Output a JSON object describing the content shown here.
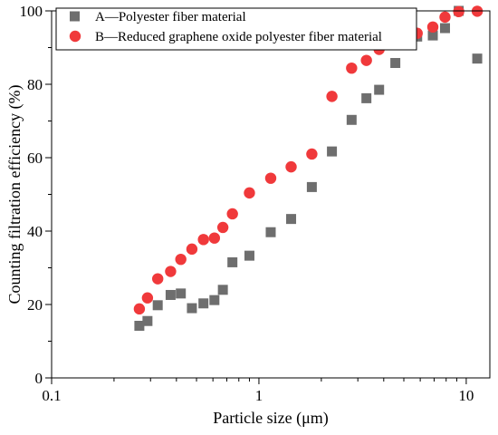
{
  "chart_data": {
    "type": "scatter",
    "title": "",
    "xlabel": "Particle size (μm)",
    "ylabel": "Counting filtration efficiency (%)",
    "xscale": "log",
    "xlim": [
      0.1,
      13
    ],
    "ylim": [
      0,
      100
    ],
    "xticks": [
      {
        "value": 0.1,
        "label": "0.1"
      },
      {
        "value": 1,
        "label": "1"
      },
      {
        "value": 10,
        "label": "10"
      }
    ],
    "yticks": [
      {
        "value": 0,
        "label": "0"
      },
      {
        "value": 20,
        "label": "20"
      },
      {
        "value": 40,
        "label": "40"
      },
      {
        "value": 60,
        "label": "60"
      },
      {
        "value": 80,
        "label": "80"
      },
      {
        "value": 100,
        "label": "100"
      }
    ],
    "legend_position": "top-left",
    "grid": false,
    "series": [
      {
        "name": "A—Polyester fiber material",
        "marker": "square",
        "color": "#6e6e6e",
        "points": [
          {
            "x": 0.265,
            "y": 14.2
          },
          {
            "x": 0.29,
            "y": 15.5
          },
          {
            "x": 0.325,
            "y": 19.8
          },
          {
            "x": 0.375,
            "y": 22.6
          },
          {
            "x": 0.42,
            "y": 23.0
          },
          {
            "x": 0.475,
            "y": 19.0
          },
          {
            "x": 0.54,
            "y": 20.3
          },
          {
            "x": 0.61,
            "y": 21.2
          },
          {
            "x": 0.67,
            "y": 24.0
          },
          {
            "x": 0.745,
            "y": 31.5
          },
          {
            "x": 0.9,
            "y": 33.3
          },
          {
            "x": 1.14,
            "y": 39.7
          },
          {
            "x": 1.43,
            "y": 43.3
          },
          {
            "x": 1.8,
            "y": 52.0
          },
          {
            "x": 2.25,
            "y": 61.7
          },
          {
            "x": 2.8,
            "y": 70.3
          },
          {
            "x": 3.3,
            "y": 76.2
          },
          {
            "x": 3.8,
            "y": 78.5
          },
          {
            "x": 4.55,
            "y": 85.8
          },
          {
            "x": 5.8,
            "y": 93.0
          },
          {
            "x": 6.9,
            "y": 93.3
          },
          {
            "x": 7.9,
            "y": 95.3
          },
          {
            "x": 9.2,
            "y": 100.0
          },
          {
            "x": 11.3,
            "y": 87.0
          }
        ]
      },
      {
        "name": "B—Reduced graphene oxide polyester fiber material",
        "marker": "circle",
        "color": "#f0393b",
        "points": [
          {
            "x": 0.265,
            "y": 18.8
          },
          {
            "x": 0.29,
            "y": 21.8
          },
          {
            "x": 0.325,
            "y": 27.0
          },
          {
            "x": 0.375,
            "y": 29.0
          },
          {
            "x": 0.42,
            "y": 32.3
          },
          {
            "x": 0.475,
            "y": 35.1
          },
          {
            "x": 0.54,
            "y": 37.7
          },
          {
            "x": 0.61,
            "y": 38.1
          },
          {
            "x": 0.67,
            "y": 41.0
          },
          {
            "x": 0.745,
            "y": 44.7
          },
          {
            "x": 0.9,
            "y": 50.4
          },
          {
            "x": 1.14,
            "y": 54.4
          },
          {
            "x": 1.43,
            "y": 57.5
          },
          {
            "x": 1.8,
            "y": 61.0
          },
          {
            "x": 2.25,
            "y": 76.7
          },
          {
            "x": 2.8,
            "y": 84.4
          },
          {
            "x": 3.3,
            "y": 86.5
          },
          {
            "x": 3.8,
            "y": 89.5
          },
          {
            "x": 4.55,
            "y": 91.4
          },
          {
            "x": 5.8,
            "y": 93.9
          },
          {
            "x": 6.9,
            "y": 95.6
          },
          {
            "x": 7.9,
            "y": 98.3
          },
          {
            "x": 9.2,
            "y": 99.8
          },
          {
            "x": 11.3,
            "y": 99.9
          }
        ]
      }
    ]
  }
}
